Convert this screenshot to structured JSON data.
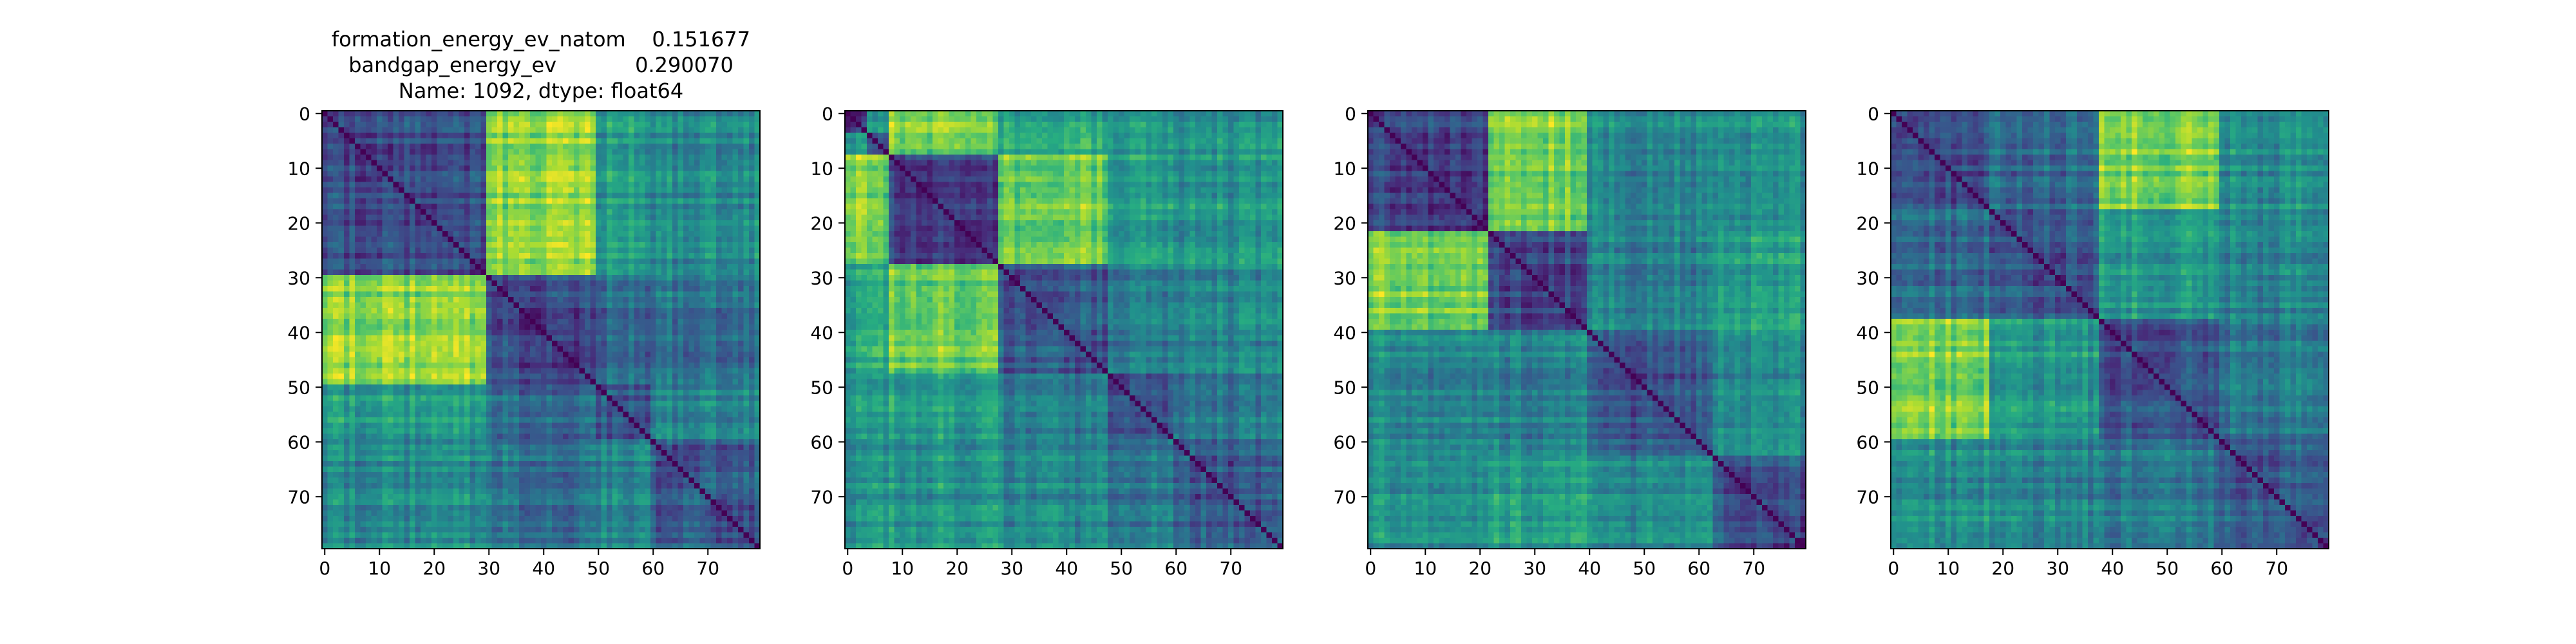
{
  "figure": {
    "title_lines": [
      "formation_energy_ev_natom    0.151677",
      "bandgap_energy_ev            0.290070",
      "Name: 1092, dtype: float64"
    ]
  },
  "chart_data": [
    {
      "type": "heatmap",
      "title": "",
      "xlabel": "",
      "ylabel": "",
      "size": 80,
      "xlim": [
        0,
        79
      ],
      "ylim": [
        79,
        0
      ],
      "xticks": [
        0,
        10,
        20,
        30,
        40,
        50,
        60,
        70
      ],
      "yticks": [
        0,
        10,
        20,
        30,
        40,
        50,
        60,
        70
      ],
      "colormap": "viridis",
      "value_range": [
        0,
        1
      ],
      "block_boundaries": [
        30,
        50,
        60
      ],
      "block_levels": [
        [
          0.25,
          0.82,
          0.55,
          0.48
        ],
        [
          0.82,
          0.22,
          0.35,
          0.38
        ],
        [
          0.55,
          0.35,
          0.3,
          0.45
        ],
        [
          0.48,
          0.38,
          0.45,
          0.3
        ]
      ],
      "diagonal_value": 0.0
    },
    {
      "type": "heatmap",
      "title": "",
      "xlabel": "",
      "ylabel": "",
      "size": 80,
      "xlim": [
        0,
        79
      ],
      "ylim": [
        79,
        0
      ],
      "xticks": [
        0,
        10,
        20,
        30,
        40,
        50,
        60,
        70
      ],
      "yticks": [
        0,
        10,
        20,
        30,
        40,
        50,
        60,
        70
      ],
      "colormap": "viridis",
      "value_range": [
        0,
        1
      ],
      "block_boundaries": [
        4,
        8,
        28,
        48,
        60
      ],
      "block_levels": [
        [
          0.2,
          0.55,
          0.85,
          0.6,
          0.55,
          0.5
        ],
        [
          0.55,
          0.25,
          0.75,
          0.6,
          0.5,
          0.5
        ],
        [
          0.85,
          0.75,
          0.22,
          0.78,
          0.55,
          0.52
        ],
        [
          0.6,
          0.6,
          0.78,
          0.28,
          0.4,
          0.45
        ],
        [
          0.55,
          0.5,
          0.55,
          0.4,
          0.3,
          0.4
        ],
        [
          0.5,
          0.5,
          0.52,
          0.45,
          0.4,
          0.3
        ]
      ],
      "diagonal_value": 0.0
    },
    {
      "type": "heatmap",
      "title": "",
      "xlabel": "",
      "ylabel": "",
      "size": 80,
      "xlim": [
        0,
        79
      ],
      "ylim": [
        79,
        0
      ],
      "xticks": [
        0,
        10,
        20,
        30,
        40,
        50,
        60,
        70
      ],
      "yticks": [
        0,
        10,
        20,
        30,
        40,
        50,
        60,
        70
      ],
      "colormap": "viridis",
      "value_range": [
        0,
        1
      ],
      "block_boundaries": [
        22,
        40,
        63
      ],
      "block_levels": [
        [
          0.22,
          0.82,
          0.48,
          0.5
        ],
        [
          0.82,
          0.25,
          0.45,
          0.55
        ],
        [
          0.48,
          0.45,
          0.28,
          0.45
        ],
        [
          0.5,
          0.55,
          0.45,
          0.25
        ]
      ],
      "diagonal_value": 0.0
    },
    {
      "type": "heatmap",
      "title": "",
      "xlabel": "",
      "ylabel": "",
      "size": 80,
      "xlim": [
        0,
        79
      ],
      "ylim": [
        79,
        0
      ],
      "xticks": [
        0,
        10,
        20,
        30,
        40,
        50,
        60,
        70
      ],
      "yticks": [
        0,
        10,
        20,
        30,
        40,
        50,
        60,
        70
      ],
      "colormap": "viridis",
      "value_range": [
        0,
        1
      ],
      "block_boundaries": [
        18,
        38,
        60
      ],
      "block_levels": [
        [
          0.25,
          0.35,
          0.82,
          0.5
        ],
        [
          0.35,
          0.28,
          0.55,
          0.45
        ],
        [
          0.82,
          0.55,
          0.28,
          0.4
        ],
        [
          0.5,
          0.45,
          0.4,
          0.3
        ]
      ],
      "diagonal_value": 0.0
    }
  ]
}
